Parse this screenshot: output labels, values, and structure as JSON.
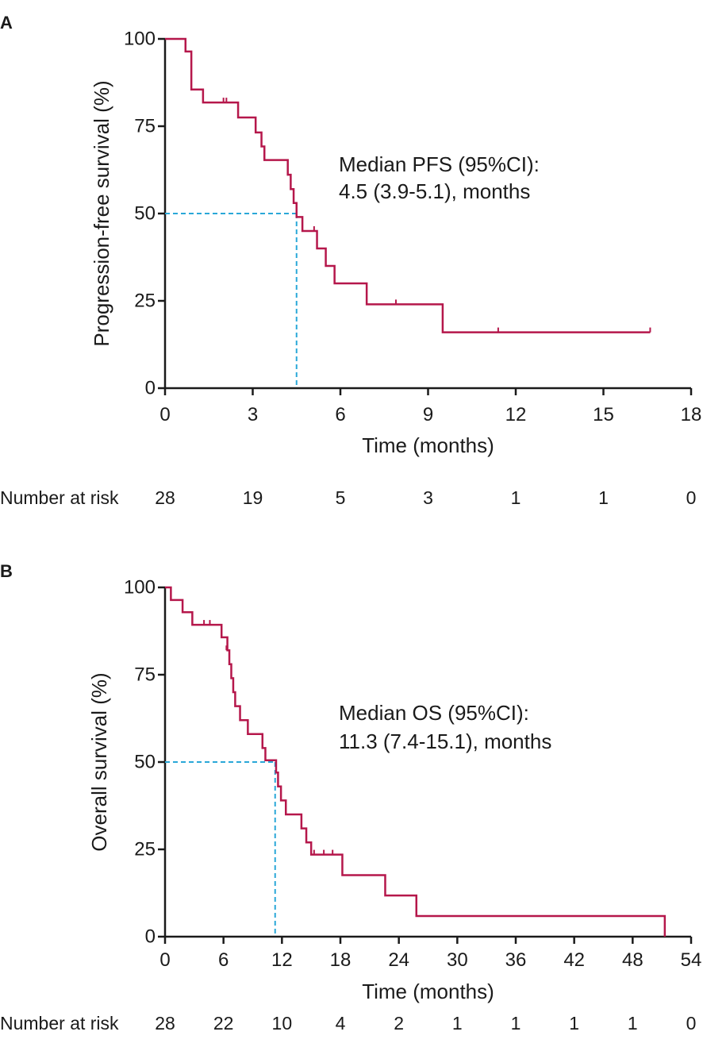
{
  "chart_data": [
    {
      "type": "line",
      "subtype": "kaplan-meier",
      "panel_label": "A",
      "xlabel": "Time (months)",
      "ylabel": "Progression-free survival (%)",
      "xlim": [
        0,
        18
      ],
      "ylim": [
        0,
        100
      ],
      "xticks": [
        0,
        3,
        6,
        9,
        12,
        15,
        18
      ],
      "yticks": [
        0,
        25,
        50,
        75,
        100
      ],
      "xtick_labels": [
        "0",
        "3",
        "6",
        "9",
        "12",
        "15",
        "18"
      ],
      "ytick_labels": [
        "0",
        "25",
        "50",
        "75",
        "100"
      ],
      "grid": false,
      "series": [
        {
          "name": "PFS",
          "color": "#b5174b",
          "steps": [
            [
              0,
              100
            ],
            [
              0.7,
              96.4
            ],
            [
              0.9,
              85.5
            ],
            [
              1.3,
              81.8
            ],
            [
              2.5,
              77.5
            ],
            [
              3.1,
              73.2
            ],
            [
              3.3,
              69.2
            ],
            [
              3.4,
              65.3
            ],
            [
              4.2,
              61.1
            ],
            [
              4.3,
              57
            ],
            [
              4.4,
              53
            ],
            [
              4.5,
              49
            ],
            [
              4.7,
              45
            ],
            [
              5.2,
              40
            ],
            [
              5.5,
              35
            ],
            [
              5.8,
              30
            ],
            [
              6.9,
              24
            ],
            [
              9.5,
              16
            ],
            [
              16.6,
              16
            ]
          ],
          "censored": [
            [
              2.0,
              81.8
            ],
            [
              2.1,
              81.8
            ],
            [
              5.1,
              45
            ],
            [
              7.9,
              24
            ],
            [
              11.4,
              16
            ],
            [
              16.6,
              16
            ]
          ]
        }
      ],
      "median_line": {
        "value": 4.5,
        "color": "#2aa8d8"
      },
      "annotation": [
        "Median PFS (95%CI):",
        "4.5 (3.9-5.1), months"
      ],
      "risk_table": {
        "label": "Number at risk",
        "times": [
          0,
          3,
          6,
          9,
          12,
          15,
          18
        ],
        "values": [
          "28",
          "19",
          "5",
          "3",
          "1",
          "1",
          "0"
        ]
      }
    },
    {
      "type": "line",
      "subtype": "kaplan-meier",
      "panel_label": "B",
      "xlabel": "Time (months)",
      "ylabel": "Overall survival (%)",
      "xlim": [
        0,
        54
      ],
      "ylim": [
        0,
        100
      ],
      "xticks": [
        0,
        6,
        12,
        18,
        24,
        30,
        36,
        42,
        48,
        54
      ],
      "yticks": [
        0,
        25,
        50,
        75,
        100
      ],
      "xtick_labels": [
        "0",
        "6",
        "12",
        "18",
        "24",
        "30",
        "36",
        "42",
        "48",
        "54"
      ],
      "ytick_labels": [
        "0",
        "25",
        "50",
        "75",
        "100"
      ],
      "grid": false,
      "series": [
        {
          "name": "OS",
          "color": "#b5174b",
          "steps": [
            [
              0,
              100
            ],
            [
              0.6,
              96.4
            ],
            [
              1.8,
              92.9
            ],
            [
              2.8,
              89.3
            ],
            [
              5.8,
              85.7
            ],
            [
              6.4,
              82
            ],
            [
              6.6,
              78
            ],
            [
              6.8,
              74
            ],
            [
              7.0,
              70
            ],
            [
              7.2,
              66
            ],
            [
              7.7,
              62
            ],
            [
              8.5,
              58
            ],
            [
              10.0,
              54
            ],
            [
              10.3,
              50.5
            ],
            [
              11.4,
              47
            ],
            [
              11.6,
              43
            ],
            [
              11.9,
              39
            ],
            [
              12.4,
              35
            ],
            [
              14.0,
              31
            ],
            [
              14.5,
              27
            ],
            [
              15.0,
              23.5
            ],
            [
              18.2,
              17.6
            ],
            [
              22.6,
              11.8
            ],
            [
              25.8,
              5.9
            ],
            [
              51.3,
              5.9
            ],
            [
              51.3,
              0
            ]
          ],
          "censored": [
            [
              4.0,
              89.3
            ],
            [
              4.6,
              89.3
            ],
            [
              6.3,
              82
            ],
            [
              15.3,
              23.5
            ],
            [
              16.3,
              23.5
            ],
            [
              17.2,
              23.5
            ]
          ]
        }
      ],
      "median_line": {
        "value": 11.3,
        "color": "#2aa8d8"
      },
      "annotation": [
        "Median OS (95%CI):",
        "11.3 (7.4-15.1), months"
      ],
      "risk_table": {
        "label": "Number at risk",
        "times": [
          0,
          6,
          12,
          18,
          24,
          30,
          36,
          42,
          48,
          54
        ],
        "values": [
          "28",
          "22",
          "10",
          "4",
          "2",
          "1",
          "1",
          "1",
          "1",
          "0"
        ]
      }
    }
  ]
}
